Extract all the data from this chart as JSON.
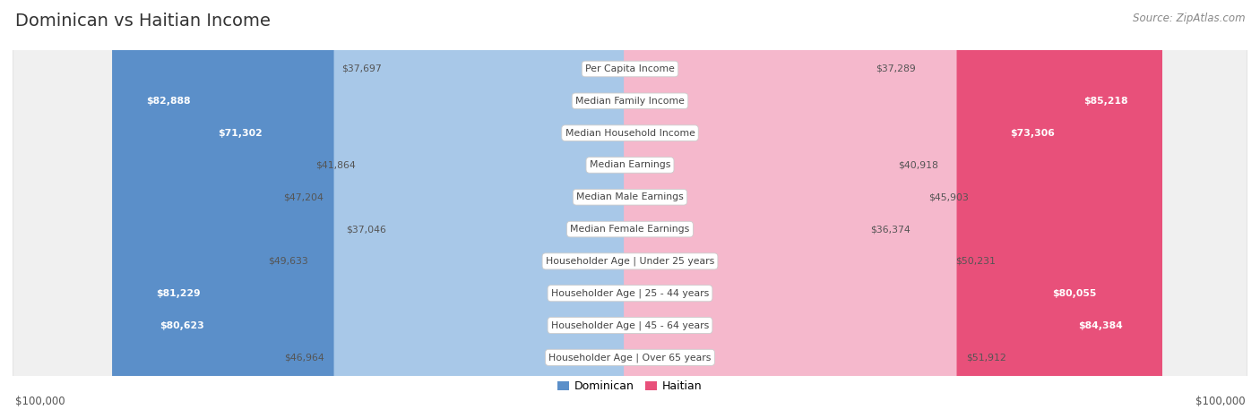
{
  "title": "Dominican vs Haitian Income",
  "source": "Source: ZipAtlas.com",
  "max_value": 100000,
  "categories": [
    "Per Capita Income",
    "Median Family Income",
    "Median Household Income",
    "Median Earnings",
    "Median Male Earnings",
    "Median Female Earnings",
    "Householder Age | Under 25 years",
    "Householder Age | 25 - 44 years",
    "Householder Age | 45 - 64 years",
    "Householder Age | Over 65 years"
  ],
  "dominican_values": [
    37697,
    82888,
    71302,
    41864,
    47204,
    37046,
    49633,
    81229,
    80623,
    46964
  ],
  "haitian_values": [
    37289,
    85218,
    73306,
    40918,
    45903,
    36374,
    50231,
    80055,
    84384,
    51912
  ],
  "dominican_labels": [
    "$37,697",
    "$82,888",
    "$71,302",
    "$41,864",
    "$47,204",
    "$37,046",
    "$49,633",
    "$81,229",
    "$80,623",
    "$46,964"
  ],
  "haitian_labels": [
    "$37,289",
    "$85,218",
    "$73,306",
    "$40,918",
    "$45,903",
    "$36,374",
    "$50,231",
    "$80,055",
    "$84,384",
    "$51,912"
  ],
  "dominican_color_light": "#a8c8e8",
  "dominican_color_dark": "#5b8fc9",
  "haitian_color_light": "#f5b8cc",
  "haitian_color_dark": "#e8507a",
  "label_threshold": 65000,
  "background_color": "#ffffff",
  "row_bg_color": "#f0f0f0",
  "row_border_color": "#dddddd",
  "legend_dominican": "Dominican",
  "legend_haitian": "Haitian",
  "xlabel_left": "$100,000",
  "xlabel_right": "$100,000",
  "title_color": "#333333",
  "source_color": "#888888",
  "label_outside_color": "#555555",
  "label_inside_color": "#ffffff",
  "center_label_color": "#444444"
}
